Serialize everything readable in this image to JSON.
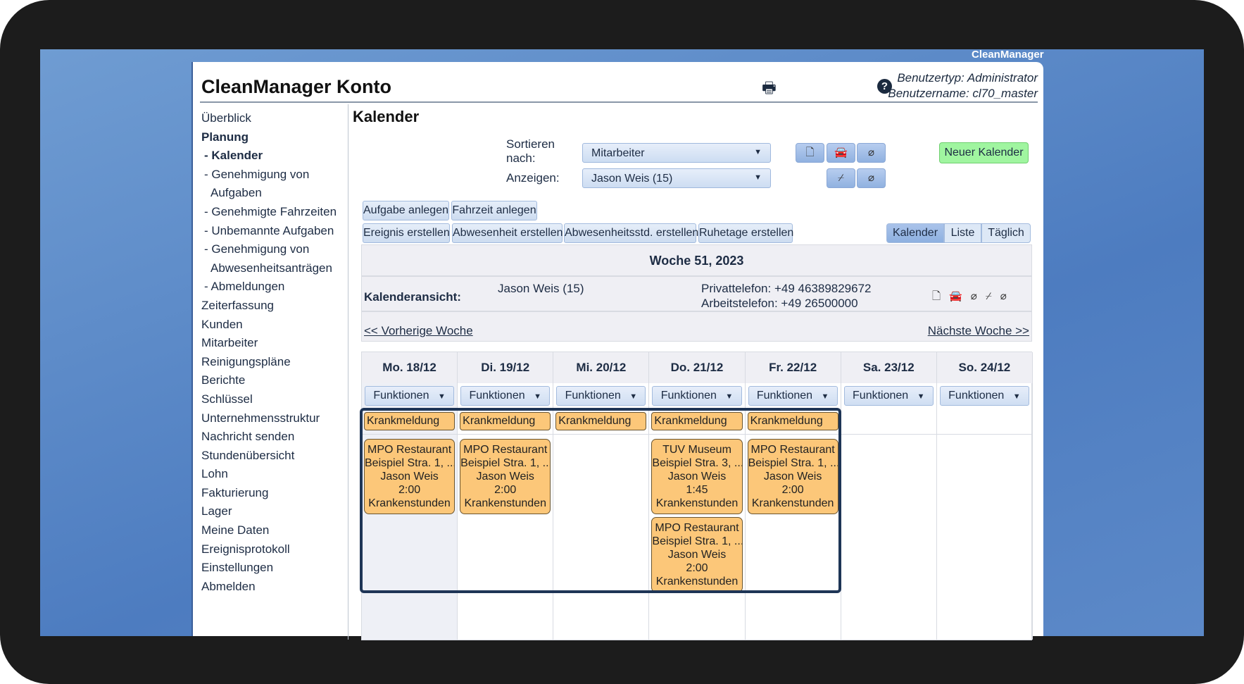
{
  "app": {
    "brand": "CleanManager",
    "title": "CleanManager Konto",
    "user_type": "Benutzertyp: Administrator",
    "user_name": "Benutzername: cl70_master"
  },
  "sidebar": {
    "items": [
      {
        "label": "Überblick",
        "style": ""
      },
      {
        "label": "Planung",
        "style": "b"
      },
      {
        "label": "- Kalender",
        "style": "b ind"
      },
      {
        "label": "- Genehmigung von",
        "style": "ind"
      },
      {
        "label": "Aufgaben",
        "style": "ind2"
      },
      {
        "label": "- Genehmigte Fahrzeiten",
        "style": "ind"
      },
      {
        "label": "- Unbemannte Aufgaben",
        "style": "ind"
      },
      {
        "label": "- Genehmigung von",
        "style": "ind"
      },
      {
        "label": "Abwesenheitsanträgen",
        "style": "ind2"
      },
      {
        "label": "- Abmeldungen",
        "style": "ind"
      },
      {
        "label": "Zeiterfassung",
        "style": ""
      },
      {
        "label": "Kunden",
        "style": ""
      },
      {
        "label": "Mitarbeiter",
        "style": ""
      },
      {
        "label": "Reinigungspläne",
        "style": ""
      },
      {
        "label": "Berichte",
        "style": ""
      },
      {
        "label": "Schlüssel",
        "style": ""
      },
      {
        "label": "Unternehmensstruktur",
        "style": ""
      },
      {
        "label": "Nachricht senden",
        "style": ""
      },
      {
        "label": "Stundenübersicht",
        "style": ""
      },
      {
        "label": "Lohn",
        "style": ""
      },
      {
        "label": "Fakturierung",
        "style": ""
      },
      {
        "label": "Lager",
        "style": ""
      },
      {
        "label": "Meine Daten",
        "style": ""
      },
      {
        "label": "Ereignisprotokoll",
        "style": ""
      },
      {
        "label": "Einstellungen",
        "style": ""
      },
      {
        "label": "Abmelden",
        "style": ""
      }
    ]
  },
  "main": {
    "heading": "Kalender",
    "sort_label": "Sortieren nach:",
    "sort_value": "Mitarbeiter",
    "show_label": "Anzeigen:",
    "show_value": "Jason Weis (15)",
    "new_calendar": "Neuer Kalender",
    "actions_row1": [
      "Aufgabe anlegen",
      "Fahrzeit anlegen"
    ],
    "actions_row2": [
      "Ereignis erstellen",
      "Abwesenheit erstellen",
      "Abwesenheitsstd. erstellen",
      "Ruhetage erstellen"
    ],
    "view_tabs": [
      {
        "label": "Kalender",
        "active": true
      },
      {
        "label": "Liste",
        "active": false
      },
      {
        "label": "Täglich",
        "active": false
      }
    ],
    "week": "Woche 51, 2023",
    "view_label": "Kalenderansicht:",
    "view_person": "Jason Weis (15)",
    "private_phone": "Privattelefon: +49 46389829672",
    "work_phone": "Arbeitstelefon: +49 26500000",
    "prev": "<< Vorherige Woche",
    "next": "Nächste Woche >>"
  },
  "calendar": {
    "functions_label": "Funktionen",
    "days": [
      {
        "label": "Mo. 18/12",
        "badge": "Krankmeldung",
        "events": [
          {
            "lines": [
              "MPO Restaurant",
              "Beispiel Stra. 1, ...",
              "Jason Weis",
              "2:00",
              "Krankenstunden"
            ]
          }
        ]
      },
      {
        "label": "Di. 19/12",
        "badge": "Krankmeldung",
        "events": [
          {
            "lines": [
              "MPO Restaurant",
              "Beispiel Stra. 1, ...",
              "Jason Weis",
              "2:00",
              "Krankenstunden"
            ]
          }
        ]
      },
      {
        "label": "Mi. 20/12",
        "badge": "Krankmeldung",
        "events": []
      },
      {
        "label": "Do. 21/12",
        "badge": "Krankmeldung",
        "events": [
          {
            "lines": [
              "TUV Museum",
              "Beispiel Stra. 3, ...",
              "Jason Weis",
              "1:45",
              "Krankenstunden"
            ]
          },
          {
            "lines": [
              "MPO Restaurant",
              "Beispiel Stra. 1, ...",
              "Jason Weis",
              "2:00",
              "Krankenstunden"
            ]
          }
        ]
      },
      {
        "label": "Fr. 22/12",
        "badge": "Krankmeldung",
        "events": [
          {
            "lines": [
              "MPO Restaurant",
              "Beispiel Stra. 1, ...",
              "Jason Weis",
              "2:00",
              "Krankenstunden"
            ]
          }
        ]
      },
      {
        "label": "Sa. 23/12",
        "badge": "",
        "events": []
      },
      {
        "label": "So. 24/12",
        "badge": "",
        "events": []
      }
    ]
  },
  "colors": {
    "event": "#fcc779",
    "new_button": "#a0f5a0",
    "highlight": "#1e3556"
  }
}
